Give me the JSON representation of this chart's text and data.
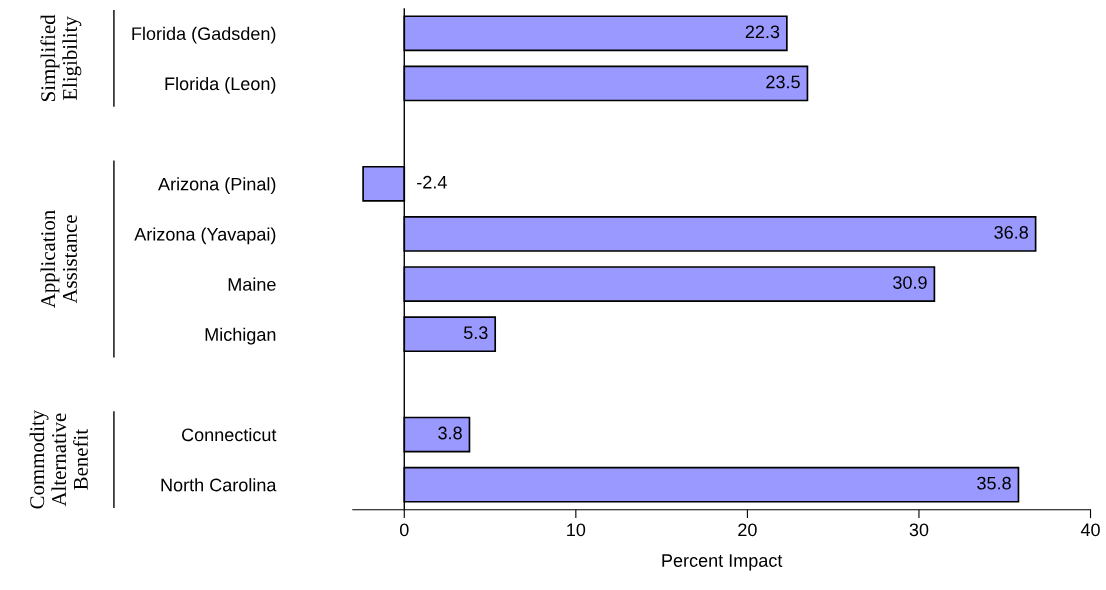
{
  "chart_data": {
    "type": "bar",
    "orientation": "horizontal",
    "xlabel": "Percent Impact",
    "categories": [
      "Florida (Gadsden)",
      "Florida (Leon)",
      null,
      "Arizona (Pinal)",
      "Arizona (Yavapai)",
      "Maine",
      "Michigan",
      null,
      "Connecticut",
      "North Carolina"
    ],
    "values": [
      22.3,
      23.5,
      null,
      -2.4,
      36.8,
      30.9,
      5.3,
      null,
      3.8,
      35.8
    ],
    "color": "#9999ff",
    "data_labels": true,
    "grid": false,
    "legend": false,
    "xlim": [
      -3,
      40
    ],
    "ref_lines": [
      {
        "axis": "x",
        "value": 0
      }
    ],
    "xticks": [
      0,
      10,
      20,
      30,
      40
    ],
    "annotations": [
      "Simplified\nEligibility",
      "Application\nAssistance",
      "Commodity\nAlternative\nBenefit"
    ]
  }
}
